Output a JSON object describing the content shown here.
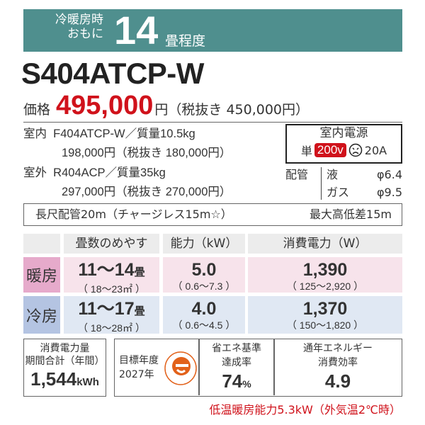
{
  "header": {
    "line1": "冷暖房時",
    "line2": "おもに",
    "size": "14",
    "unit": "畳程度"
  },
  "model": "S404ATCP-W",
  "price": {
    "label": "価格",
    "value": "495,000",
    "yen": "円",
    "tax_excl": "（税抜き 450,000円）"
  },
  "indoor": {
    "label": "室内",
    "model_weight": "F404ATCP-W／質量10.5kg",
    "price": "198,000円（税抜き 180,000円）"
  },
  "outdoor": {
    "label": "室外",
    "model_weight": "R404ACP／質量35kg",
    "price": "297,000円（税抜き 270,000円）"
  },
  "power": {
    "title": "室内電源",
    "phase": "単",
    "voltage": "200v",
    "plug_icon": "outlet-icon",
    "current": "20A"
  },
  "piping": {
    "label": "配管",
    "liquid_label": "液",
    "liquid": "φ6.4",
    "gas_label": "ガス",
    "gas": "φ9.5"
  },
  "long_pipe": {
    "text": "長尺配管20m（チャージレス15m☆）",
    "height_diff": "最大高低差15m"
  },
  "table": {
    "headers": [
      "畳数のめやす",
      "能力（kW）",
      "消費電力（W）"
    ],
    "rows": [
      {
        "label": "暖房",
        "color": "#e6aacb",
        "tatami": "11～14",
        "tatami_unit": "畳",
        "area": "（ 18～23㎡ ）",
        "capacity": "5.0",
        "capacity_range": "（ 0.6～7.3 ）",
        "power": "1,390",
        "power_range": "（ 125～2,920 ）"
      },
      {
        "label": "冷房",
        "color": "#b4c4e2",
        "tatami": "11～17",
        "tatami_unit": "畳",
        "area": "（ 18～28㎡ ）",
        "capacity": "4.0",
        "capacity_range": "（ 0.6～4.5 ）",
        "power": "1,370",
        "power_range": "（ 150～1,820 ）"
      }
    ]
  },
  "annual": {
    "l1": "消費電力量",
    "l2": "期間合計（年間）",
    "value": "1,544",
    "unit": "kWh"
  },
  "target": {
    "l1": "目標年度",
    "l2": "2027年",
    "logo_icon": "e-mark-icon"
  },
  "achieve": {
    "l1": "省エネ基準",
    "l2": "達成率",
    "value": "74",
    "unit": "%"
  },
  "apf": {
    "l1": "通年エネルギー",
    "l2": "消費効率",
    "value": "4.9"
  },
  "footer": "低温暖房能力5.3kW（外気温2℃時）"
}
